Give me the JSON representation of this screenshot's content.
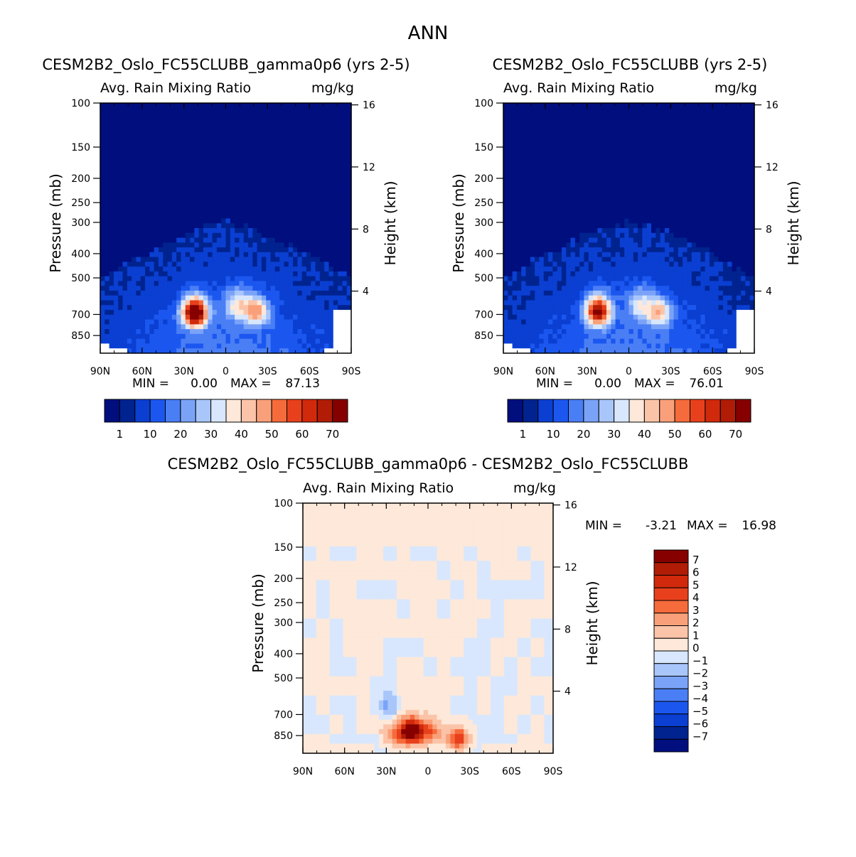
{
  "figure": {
    "title": "ANN"
  },
  "chart_data": [
    {
      "type": "heatmap",
      "title": "CESM2B2_Oslo_FC55CLUBB_gamma0p6 (yrs 2-5)",
      "subtitle_left": "Avg. Rain Mixing Ratio",
      "subtitle_right": "mg/kg",
      "xlabel": "",
      "ylabel": "Pressure (mb)",
      "ylabel_right": "Height (km)",
      "x_ticks": [
        "90N",
        "60N",
        "30N",
        "0",
        "30S",
        "60S",
        "90S"
      ],
      "x_tick_values": [
        90,
        60,
        30,
        0,
        -30,
        -60,
        -90
      ],
      "y_ticks": [
        "100",
        "150",
        "200",
        "250",
        "300",
        "400",
        "500",
        "700",
        "850"
      ],
      "y_tick_values": [
        100,
        150,
        200,
        250,
        300,
        400,
        500,
        700,
        850
      ],
      "y_range_mb": [
        100,
        1000
      ],
      "y_right_ticks": [
        "4",
        "8",
        "12",
        "16"
      ],
      "y_right_tick_values": [
        4,
        8,
        12,
        16
      ],
      "min_label": "MIN =",
      "min_value": "0.00",
      "max_label": "MAX =",
      "max_value": "87.13",
      "colorbar_labels": [
        "1",
        "10",
        "20",
        "30",
        "40",
        "50",
        "60",
        "70"
      ],
      "colorbar_levels": [
        1,
        5,
        10,
        15,
        20,
        25,
        30,
        35,
        40,
        45,
        50,
        55,
        60,
        65,
        70
      ],
      "colorbar_colors": [
        "#000e7e",
        "#00238f",
        "#0a3fd2",
        "#1b57ef",
        "#4a7ef5",
        "#7aa3f8",
        "#a9c6fb",
        "#d8e7fd",
        "#fde8d9",
        "#fbc4a8",
        "#f9a07a",
        "#f66b3b",
        "#e8401c",
        "#d1290b",
        "#b01c06",
        "#860000"
      ],
      "blobs": [
        {
          "lat": 22,
          "p": 690,
          "value": 87.13
        },
        {
          "lat": -22,
          "p": 680,
          "value": 50
        },
        {
          "lat": -8,
          "p": 640,
          "value": 38
        }
      ]
    },
    {
      "type": "heatmap",
      "title": "CESM2B2_Oslo_FC55CLUBB (yrs 2-5)",
      "subtitle_left": "Avg. Rain Mixing Ratio",
      "subtitle_right": "mg/kg",
      "xlabel": "",
      "ylabel": "Pressure (mb)",
      "ylabel_right": "Height (km)",
      "x_ticks": [
        "90N",
        "60N",
        "30N",
        "0",
        "30S",
        "60S",
        "90S"
      ],
      "x_tick_values": [
        90,
        60,
        30,
        0,
        -30,
        -60,
        -90
      ],
      "y_ticks": [
        "100",
        "150",
        "200",
        "250",
        "300",
        "400",
        "500",
        "700",
        "850"
      ],
      "y_tick_values": [
        100,
        150,
        200,
        250,
        300,
        400,
        500,
        700,
        850
      ],
      "y_range_mb": [
        100,
        1000
      ],
      "y_right_ticks": [
        "4",
        "8",
        "12",
        "16"
      ],
      "y_right_tick_values": [
        4,
        8,
        12,
        16
      ],
      "min_label": "MIN =",
      "min_value": "0.00",
      "max_label": "MAX =",
      "max_value": "76.01",
      "colorbar_labels": [
        "1",
        "10",
        "20",
        "30",
        "40",
        "50",
        "60",
        "70"
      ],
      "colorbar_levels": [
        1,
        5,
        10,
        15,
        20,
        25,
        30,
        35,
        40,
        45,
        50,
        55,
        60,
        65,
        70
      ],
      "colorbar_colors": [
        "#000e7e",
        "#00238f",
        "#0a3fd2",
        "#1b57ef",
        "#4a7ef5",
        "#7aa3f8",
        "#a9c6fb",
        "#d8e7fd",
        "#fde8d9",
        "#fbc4a8",
        "#f9a07a",
        "#f66b3b",
        "#e8401c",
        "#d1290b",
        "#b01c06",
        "#860000"
      ],
      "blobs": [
        {
          "lat": 22,
          "p": 680,
          "value": 76.01
        },
        {
          "lat": -22,
          "p": 690,
          "value": 45
        },
        {
          "lat": -8,
          "p": 640,
          "value": 35
        }
      ]
    },
    {
      "type": "heatmap",
      "title": "CESM2B2_Oslo_FC55CLUBB_gamma0p6 - CESM2B2_Oslo_FC55CLUBB",
      "subtitle_left": "Avg. Rain Mixing Ratio",
      "subtitle_right": "mg/kg",
      "xlabel": "",
      "ylabel": "Pressure (mb)",
      "ylabel_right": "Height (km)",
      "x_ticks": [
        "90N",
        "60N",
        "30N",
        "0",
        "30S",
        "60S",
        "90S"
      ],
      "x_tick_values": [
        90,
        60,
        30,
        0,
        -30,
        -60,
        -90
      ],
      "y_ticks": [
        "100",
        "150",
        "200",
        "250",
        "300",
        "400",
        "500",
        "700",
        "850"
      ],
      "y_tick_values": [
        100,
        150,
        200,
        250,
        300,
        400,
        500,
        700,
        850
      ],
      "y_range_mb": [
        100,
        1000
      ],
      "y_right_ticks": [
        "4",
        "8",
        "12",
        "16"
      ],
      "y_right_tick_values": [
        4,
        8,
        12,
        16
      ],
      "min_label": "MIN =",
      "min_value": "-3.21",
      "max_label": "MAX =",
      "max_value": "16.98",
      "colorbar_labels": [
        "7",
        "6",
        "5",
        "4",
        "3",
        "2",
        "1",
        "0",
        "−1",
        "−2",
        "−3",
        "−4",
        "−5",
        "−6",
        "−7"
      ],
      "colorbar_levels": [
        7,
        6,
        5,
        4,
        3,
        2,
        1,
        0,
        -1,
        -2,
        -3,
        -4,
        -5,
        -6,
        -7
      ],
      "colorbar_colors": [
        "#860000",
        "#b01c06",
        "#d1290b",
        "#e8401c",
        "#f66b3b",
        "#f9a07a",
        "#fbc4a8",
        "#fde8d9",
        "#d8e7fd",
        "#a9c6fb",
        "#7aa3f8",
        "#4a7ef5",
        "#1b57ef",
        "#0a3fd2",
        "#00238f",
        "#000e7e"
      ],
      "blobs": [
        {
          "lat": 12,
          "p": 820,
          "value": 16.98
        },
        {
          "lat": -22,
          "p": 880,
          "value": 9
        },
        {
          "lat": -2,
          "p": 830,
          "value": 6
        },
        {
          "lat": 25,
          "p": 860,
          "value": 5
        },
        {
          "lat": 30,
          "p": 650,
          "value": -3.21
        }
      ]
    }
  ]
}
